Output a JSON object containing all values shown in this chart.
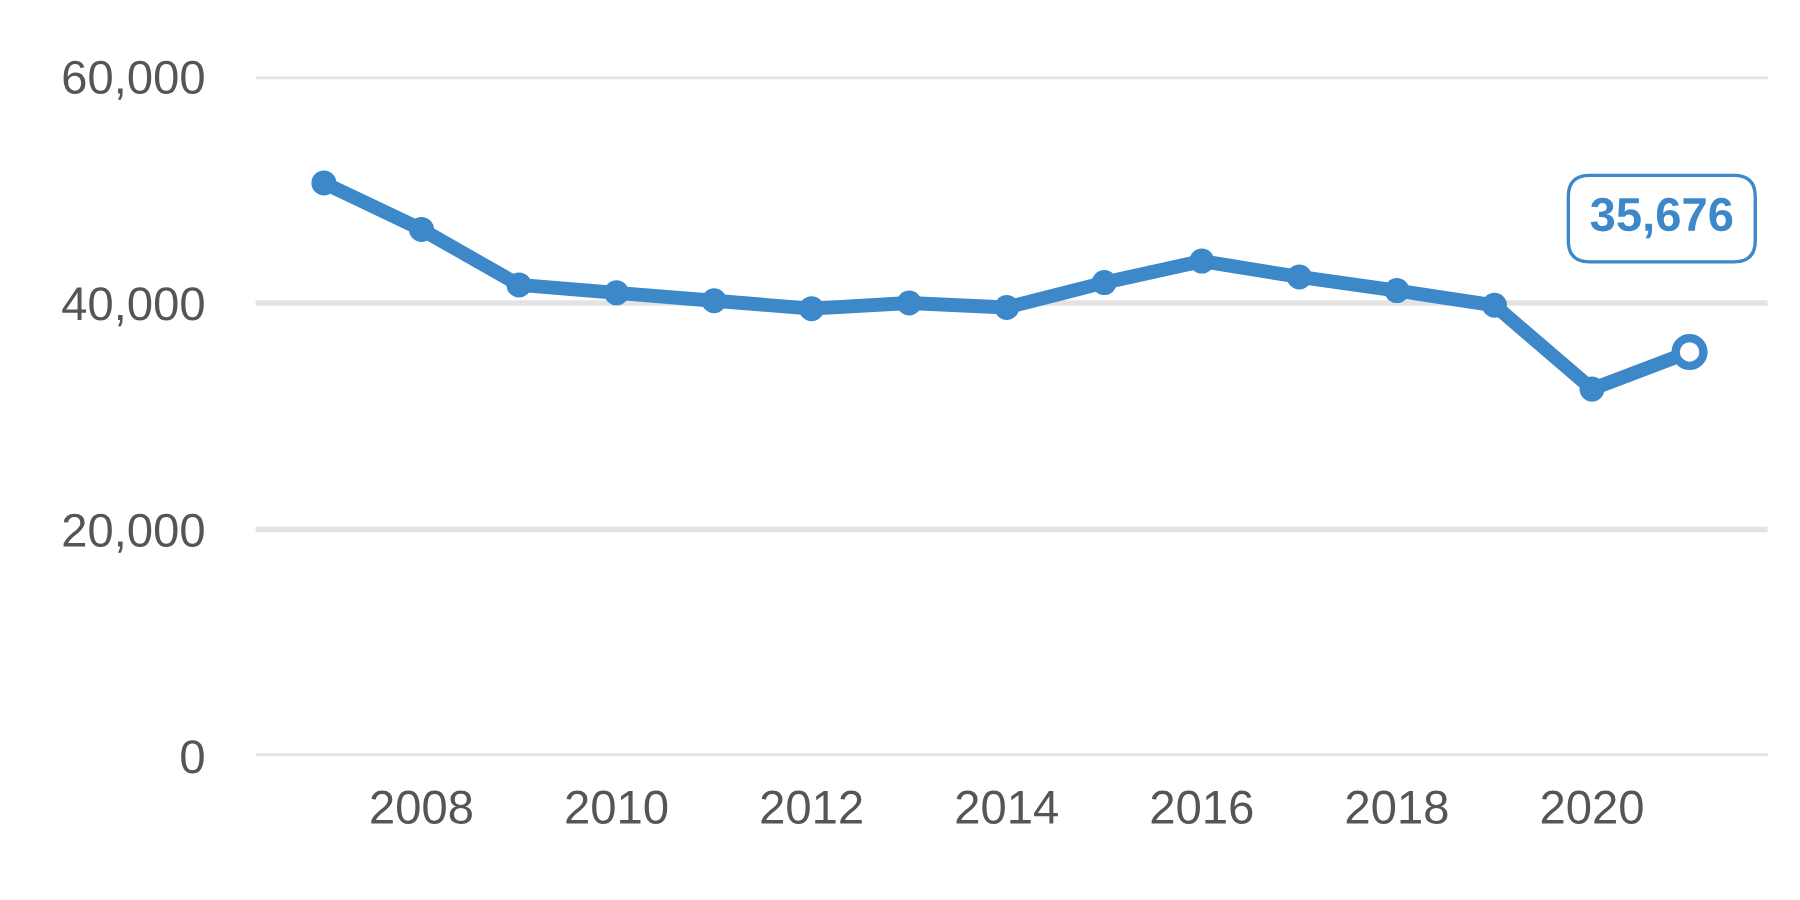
{
  "chart_data": {
    "type": "line",
    "x": [
      2007,
      2008,
      2009,
      2010,
      2011,
      2012,
      2013,
      2014,
      2015,
      2016,
      2017,
      2018,
      2019,
      2020,
      2021
    ],
    "series": [
      {
        "color": "#3d88c9",
        "values": [
          50600,
          46500,
          41600,
          40900,
          40200,
          39500,
          40000,
          39600,
          41800,
          43700,
          42300,
          41100,
          39800,
          32400,
          35676
        ]
      }
    ],
    "xlim": [
      2006.3,
      2021.8
    ],
    "xticks": [
      2008,
      2010,
      2012,
      2014,
      2016,
      2018,
      2020
    ],
    "ylim": [
      0,
      60000
    ],
    "yticks": [
      {
        "value": 0,
        "label": "0"
      },
      {
        "value": 20000,
        "label": "20,000"
      },
      {
        "value": 40000,
        "label": "40,000"
      },
      {
        "value": 60000,
        "label": "60,000"
      }
    ],
    "grid": "y",
    "marker": "circle",
    "line_style": "solid",
    "annotations": [
      {
        "text": "35,676",
        "x": 2021,
        "y": 35676
      }
    ]
  }
}
